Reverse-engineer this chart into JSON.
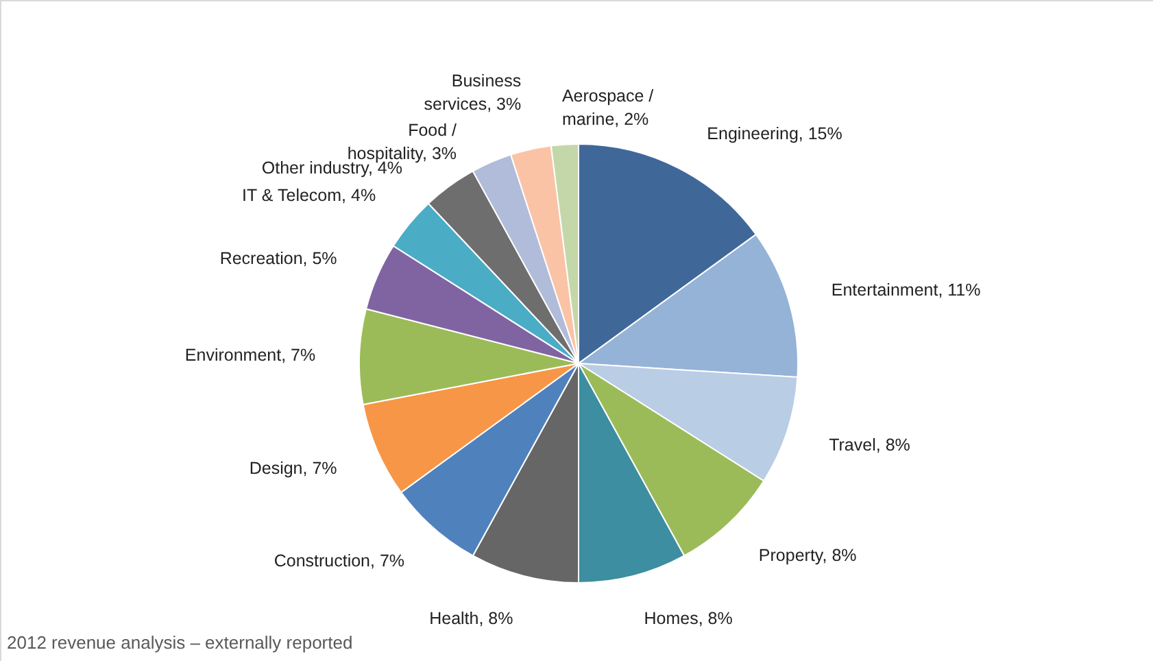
{
  "chart_data": {
    "type": "pie",
    "categories": [
      "Engineering",
      "Entertainment",
      "Travel",
      "Property",
      "Homes",
      "Health",
      "Construction",
      "Design",
      "Environment",
      "Recreation",
      "IT & Telecom",
      "Other industry",
      "Food / hospitality",
      "Business services",
      "Aerospace / marine"
    ],
    "values": [
      15,
      11,
      8,
      8,
      8,
      8,
      7,
      7,
      7,
      5,
      4,
      4,
      3,
      3,
      2
    ],
    "value_labels": [
      "15%",
      "11%",
      "8%",
      "8%",
      "8%",
      "8%",
      "7%",
      "7%",
      "7%",
      "5%",
      "4%",
      "4%",
      "3%",
      "3%",
      "2%"
    ],
    "colors": [
      "#3f6899",
      "#95b3d7",
      "#b9cde5",
      "#9bbb59",
      "#3c8ea0",
      "#666666",
      "#4f81bd",
      "#f79646",
      "#9bbb59",
      "#8064a2",
      "#4bacc6",
      "#6e6e6e",
      "#b0bcd9",
      "#fac3a5",
      "#c4d7a9"
    ],
    "annotations": [
      "2012 revenue analysis – externally reported"
    ]
  }
}
